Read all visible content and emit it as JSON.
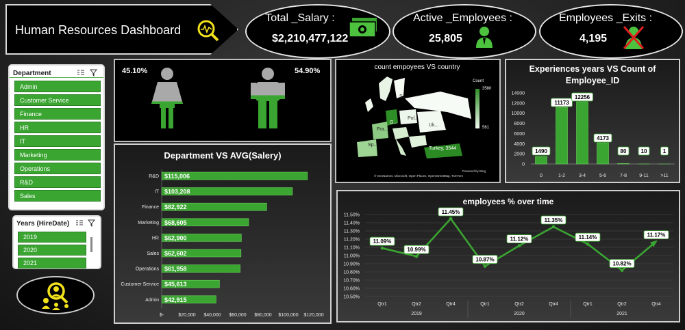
{
  "header": {
    "title": "Human Resources  Dashboard",
    "icon": "analytics-search-icon"
  },
  "kpis": [
    {
      "label": "Total _Salary :",
      "value": "$2,210,477,122",
      "icon": "money-icon"
    },
    {
      "label": "Active _Employees :",
      "value": "25,805",
      "icon": "employee-icon"
    },
    {
      "label": "Employees _Exits :",
      "value": "4,195",
      "icon": "employee-exit-icon"
    }
  ],
  "department_slicer": {
    "title": "Department",
    "items": [
      "Admin",
      "Customer Service",
      "Finance",
      "HR",
      "IT",
      "Marketing",
      "Operations",
      "R&D",
      "Sales"
    ]
  },
  "years_slicer": {
    "title": "Years (HireDate)",
    "items": [
      "2019",
      "2020",
      "2021"
    ]
  },
  "gender": {
    "female_pct": "45.10%",
    "male_pct": "54.90%",
    "female_fill": 0.451,
    "male_fill": 0.549
  },
  "map": {
    "title": "count empoyees VS country",
    "legend_title": "Count",
    "legend_max": "3580",
    "legend_min": "561",
    "labels": [
      "S...",
      "Pol...",
      "Uk...",
      "G...",
      "Fra...",
      "Sp...",
      "Turkey, 3544"
    ],
    "credit": "Powered by Bing",
    "attribution": "© GeoNames, Microsoft, Open Places, OpenStreetMap, TomTom"
  },
  "colors": {
    "accent": "#3aa531",
    "accent_light": "#6fd05e",
    "yellow": "#f2e21c",
    "bg": "#2a2a2a"
  },
  "chart_data": [
    {
      "type": "bar",
      "title": "Department  VS  AVG(Salery)",
      "categories": [
        "R&D",
        "IT",
        "Finance",
        "Marketing",
        "HR",
        "Sales",
        "Operations",
        "Customer Service",
        "Admin"
      ],
      "values": [
        115006,
        103208,
        82922,
        68605,
        62900,
        62602,
        61958,
        45613,
        42915
      ],
      "data_labels": [
        "$115,006",
        "$103,208",
        "$82,922",
        "$68,605",
        "$62,900",
        "$62,602",
        "$61,958",
        "$45,613",
        "$42,915"
      ],
      "xticks": [
        "$-",
        "$20,000",
        "$40,000",
        "$60,000",
        "$80,000",
        "$100,000",
        "$120,000"
      ],
      "xlim": [
        0,
        120000
      ],
      "orientation": "horizontal"
    },
    {
      "type": "bar",
      "title": "Experiences years  VS  Count of Employee_ID",
      "categories": [
        "0",
        "1-2",
        "3-4",
        "5-6",
        "7-8",
        "9-11",
        ">11"
      ],
      "values": [
        1490,
        11173,
        12256,
        4173,
        80,
        10,
        1
      ],
      "yticks": [
        "0",
        "2000",
        "4000",
        "6000",
        "8000",
        "10000",
        "12000",
        "14000"
      ],
      "ylim": [
        0,
        14000
      ]
    },
    {
      "type": "line",
      "title": "employees % over time",
      "categories": [
        "Qtr1",
        "Qtr2",
        "Qtr4",
        "Qtr1",
        "Qtr2",
        "Qtr4",
        "Qtr1",
        "Qtr2",
        "Qtr4"
      ],
      "groups": [
        "2019",
        "2020",
        "2021"
      ],
      "values": [
        11.09,
        10.99,
        11.45,
        10.87,
        11.12,
        11.35,
        11.14,
        10.82,
        11.17
      ],
      "data_labels": [
        "11.09%",
        "10.99%",
        "11.45%",
        "10.87%",
        "11.12%",
        "11.35%",
        "11.14%",
        "10.82%",
        "11.17%"
      ],
      "yticks": [
        "10.50%",
        "10.60%",
        "10.70%",
        "10.80%",
        "10.90%",
        "11.00%",
        "11.10%",
        "11.20%",
        "11.30%",
        "11.40%",
        "11.50%"
      ],
      "ylim": [
        10.5,
        11.5
      ]
    }
  ]
}
